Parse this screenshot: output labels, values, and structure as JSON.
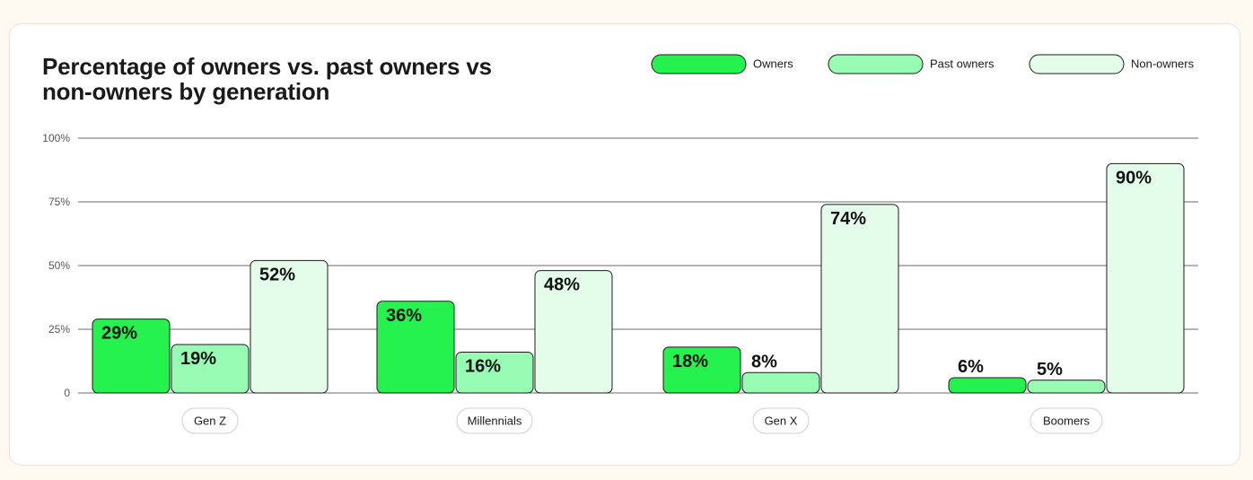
{
  "chart_data": {
    "type": "bar",
    "title_lines": [
      "Percentage of owners vs. past owners vs",
      "non-owners by generation"
    ],
    "categories": [
      "Gen Z",
      "Millennials",
      "Gen X",
      "Boomers"
    ],
    "series": [
      {
        "name": "Owners",
        "values": [
          29,
          36,
          18,
          6
        ],
        "labels": [
          "29%",
          "36%",
          "18%",
          "6%"
        ],
        "color": "#25f24f"
      },
      {
        "name": "Past owners",
        "values": [
          19,
          16,
          8,
          5
        ],
        "labels": [
          "19%",
          "16%",
          "8%",
          "5%"
        ],
        "color": "#98fbb4"
      },
      {
        "name": "Non-owners",
        "values": [
          52,
          48,
          74,
          90
        ],
        "labels": [
          "52%",
          "48%",
          "74%",
          "90%"
        ],
        "color": "#e3fdea"
      }
    ],
    "ylim": [
      0,
      100
    ],
    "yticks": [
      0,
      25,
      50,
      75,
      100
    ],
    "ytick_labels": [
      "0",
      "25%",
      "50%",
      "75%",
      "100%"
    ],
    "grid": true,
    "legend": "top-right"
  }
}
